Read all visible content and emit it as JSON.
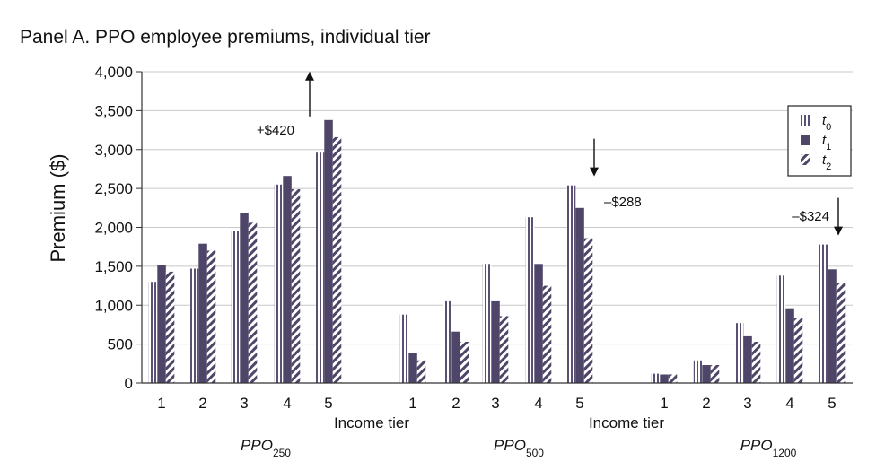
{
  "chart_data": {
    "type": "bar",
    "title": "Panel A. PPO employee premiums, individual tier",
    "ylabel": "Premium ($)",
    "ylim": [
      0,
      4000
    ],
    "yticks": [
      "0",
      "500",
      "1,000",
      "1,500",
      "2,000",
      "2,500",
      "3,000",
      "3,500",
      "4,000"
    ],
    "grid": "horizontal",
    "legend_position": "top-right",
    "legend": [
      {
        "base": "t",
        "sub": "0",
        "pattern": "vertical-stripes"
      },
      {
        "base": "t",
        "sub": "1",
        "pattern": "solid"
      },
      {
        "base": "t",
        "sub": "2",
        "pattern": "diagonal-stripes"
      }
    ],
    "groups": [
      {
        "name_base": "PPO",
        "name_sub": "250",
        "xlabel": "Income tier",
        "categories": [
          "1",
          "2",
          "3",
          "4",
          "5"
        ],
        "series": [
          {
            "name": "t0",
            "values": [
              1300,
              1470,
              1950,
              2550,
              2960
            ]
          },
          {
            "name": "t1",
            "values": [
              1510,
              1790,
              2180,
              2660,
              3380
            ]
          },
          {
            "name": "t2",
            "values": [
              1430,
              1700,
              2060,
              2490,
              3160
            ]
          }
        ]
      },
      {
        "name_base": "PPO",
        "name_sub": "500",
        "xlabel": "Income tier",
        "categories": [
          "1",
          "2",
          "3",
          "4",
          "5"
        ],
        "series": [
          {
            "name": "t0",
            "values": [
              880,
              1050,
              1530,
              2130,
              2540
            ]
          },
          {
            "name": "t1",
            "values": [
              380,
              660,
              1050,
              1530,
              2250
            ]
          },
          {
            "name": "t2",
            "values": [
              290,
              530,
              860,
              1250,
              1860
            ]
          }
        ]
      },
      {
        "name_base": "PPO",
        "name_sub": "1200",
        "xlabel": "",
        "categories": [
          "1",
          "2",
          "3",
          "4",
          "5"
        ],
        "series": [
          {
            "name": "t0",
            "values": [
              120,
              290,
              770,
              1380,
              1780
            ]
          },
          {
            "name": "t1",
            "values": [
              110,
              230,
              600,
              960,
              1460
            ]
          },
          {
            "name": "t2",
            "values": [
              110,
              230,
              530,
              840,
              1280
            ]
          }
        ]
      }
    ],
    "annotations": [
      {
        "text": "+$420",
        "group": 0,
        "category": 4,
        "direction": "up"
      },
      {
        "text": "–$288",
        "group": 1,
        "category": 4,
        "direction": "down"
      },
      {
        "text": "–$324",
        "group": 2,
        "category": 4,
        "direction": "down"
      }
    ],
    "colors": {
      "t0_stripe": "#5a5074",
      "t1_fill": "#4e4568",
      "t2_stripe": "#4e4568",
      "axis": "#333333",
      "grid": "#c8c8c8"
    }
  }
}
